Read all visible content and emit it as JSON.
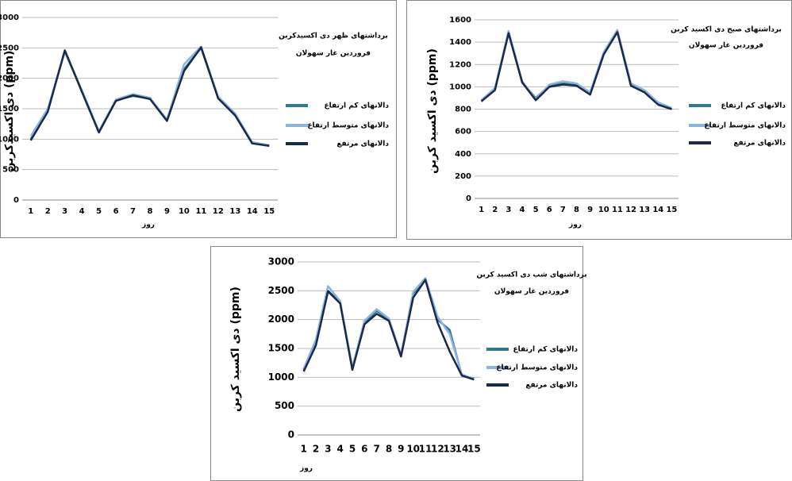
{
  "chart_data": [
    {
      "type": "line",
      "title": [
        "برداشتهای ظهر دی اکسیدکربن",
        "فروردین غار سهولان"
      ],
      "y_label": "دی اکسیدکربن (ppm)",
      "x_label": "روز",
      "categories": [
        "1",
        "2",
        "3",
        "4",
        "5",
        "6",
        "7",
        "8",
        "9",
        "10",
        "11",
        "12",
        "13",
        "14",
        "15"
      ],
      "ylim": [
        0,
        3000
      ],
      "yticks": [
        0,
        500,
        1000,
        1500,
        2000,
        2500,
        3000
      ],
      "grid": true,
      "series": [
        {
          "name": "دالانهای کم ارتفاع",
          "color": "#2e7b8c",
          "values": [
            1000,
            1480,
            2450,
            1800,
            1120,
            1640,
            1710,
            1670,
            1310,
            2150,
            2500,
            1680,
            1400,
            940,
            890
          ]
        },
        {
          "name": "دالانهای متوسط ارتفاع",
          "color": "#8cb4e0",
          "values": [
            1050,
            1500,
            2430,
            1800,
            1130,
            1650,
            1740,
            1680,
            1320,
            2230,
            2520,
            1700,
            1420,
            950,
            900
          ]
        },
        {
          "name": "دالانهای  مرتفع",
          "color": "#1a2a48",
          "values": [
            980,
            1450,
            2460,
            1780,
            1110,
            1630,
            1720,
            1660,
            1300,
            2120,
            2510,
            1670,
            1390,
            930,
            890
          ]
        }
      ]
    },
    {
      "type": "line",
      "title": [
        "برداشتهای صبح دی اکسید کربن",
        "فروردین غار سهولان"
      ],
      "y_label": "دی اکسید کربن (ppm)",
      "x_label": "روز",
      "categories": [
        "1",
        "2",
        "3",
        "4",
        "5",
        "6",
        "7",
        "8",
        "9",
        "10",
        "11",
        "12",
        "13",
        "14",
        "15"
      ],
      "ylim": [
        0,
        1600
      ],
      "yticks": [
        0,
        200,
        400,
        600,
        800,
        1000,
        1200,
        1400,
        1600
      ],
      "grid": true,
      "series": [
        {
          "name": "دالانهای کم ارتفاع",
          "color": "#2e7b8c",
          "values": [
            870,
            980,
            1490,
            1040,
            900,
            1010,
            1030,
            1020,
            940,
            1300,
            1500,
            1020,
            960,
            850,
            800
          ]
        },
        {
          "name": "دالانهای متوسط ارتفاع",
          "color": "#8cb4e0",
          "values": [
            880,
            990,
            1500,
            1050,
            890,
            1020,
            1050,
            1030,
            950,
            1310,
            1510,
            1030,
            970,
            860,
            810
          ]
        },
        {
          "name": "دالانهای  مرتفع",
          "color": "#1a2a48",
          "values": [
            870,
            970,
            1480,
            1040,
            880,
            1000,
            1020,
            1010,
            930,
            1290,
            1490,
            1010,
            950,
            840,
            800
          ]
        }
      ]
    },
    {
      "type": "line",
      "title": [
        "برداشتهای شب دی اکسید کربن",
        "فروردین غار سهولان"
      ],
      "y_label": "دی اکسید کربن (ppm)",
      "x_label": "روز",
      "categories": [
        "1",
        "2",
        "3",
        "4",
        "5",
        "6",
        "7",
        "8",
        "9",
        "10",
        "11",
        "12",
        "13",
        "14",
        "15"
      ],
      "ylim": [
        0,
        3000
      ],
      "yticks": [
        0,
        500,
        1000,
        1500,
        2000,
        2500,
        3000
      ],
      "grid": true,
      "series": [
        {
          "name": "دالانهای کم ارتفاع",
          "color": "#2e7b8c",
          "values": [
            1130,
            1600,
            2500,
            2300,
            1150,
            1950,
            2150,
            2000,
            1380,
            2450,
            2700,
            2000,
            1820,
            1030,
            980
          ]
        },
        {
          "name": "دالانهای متوسط ارتفاع",
          "color": "#8cb4e0",
          "values": [
            1150,
            1650,
            2580,
            2320,
            1170,
            1980,
            2180,
            2020,
            1390,
            2480,
            2720,
            2050,
            1750,
            1050,
            970
          ]
        },
        {
          "name": "دالانهای  مرتفع",
          "color": "#1a2a48",
          "values": [
            1100,
            1550,
            2490,
            2280,
            1130,
            1920,
            2100,
            1980,
            1360,
            2380,
            2690,
            1950,
            1450,
            1030,
            960
          ]
        }
      ]
    }
  ]
}
